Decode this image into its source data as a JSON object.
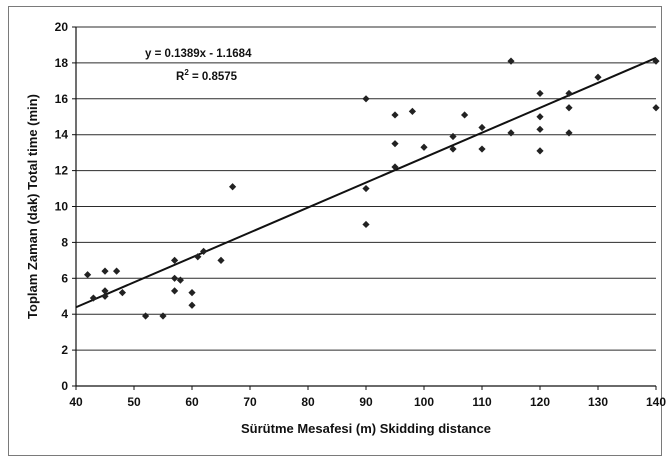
{
  "chart_data": {
    "type": "scatter",
    "xlabel": "Sürütme Mesafesi (m)  Skidding distance",
    "ylabel": "Toplam Zaman (dak)   Total time (min)",
    "xlim": [
      40,
      140
    ],
    "ylim": [
      0,
      20
    ],
    "x_ticks": [
      40,
      50,
      60,
      70,
      80,
      90,
      100,
      110,
      120,
      130,
      140
    ],
    "y_ticks": [
      0,
      2,
      4,
      6,
      8,
      10,
      12,
      14,
      16,
      18,
      20
    ],
    "grid": "horizontal",
    "points": [
      {
        "x": 42,
        "y": 6.2
      },
      {
        "x": 43,
        "y": 4.9
      },
      {
        "x": 45,
        "y": 6.4
      },
      {
        "x": 45,
        "y": 5.3
      },
      {
        "x": 45,
        "y": 5.0
      },
      {
        "x": 47,
        "y": 6.4
      },
      {
        "x": 48,
        "y": 5.2
      },
      {
        "x": 52,
        "y": 3.9
      },
      {
        "x": 55,
        "y": 3.9
      },
      {
        "x": 57,
        "y": 7.0
      },
      {
        "x": 57,
        "y": 6.0
      },
      {
        "x": 57,
        "y": 5.3
      },
      {
        "x": 58,
        "y": 5.9
      },
      {
        "x": 60,
        "y": 5.2
      },
      {
        "x": 60,
        "y": 4.5
      },
      {
        "x": 61,
        "y": 7.2
      },
      {
        "x": 62,
        "y": 7.5
      },
      {
        "x": 65,
        "y": 7.0
      },
      {
        "x": 67,
        "y": 11.1
      },
      {
        "x": 90,
        "y": 16.0
      },
      {
        "x": 90,
        "y": 11.0
      },
      {
        "x": 90,
        "y": 9.0
      },
      {
        "x": 95,
        "y": 15.1
      },
      {
        "x": 95,
        "y": 13.5
      },
      {
        "x": 95,
        "y": 12.2
      },
      {
        "x": 98,
        "y": 15.3
      },
      {
        "x": 100,
        "y": 13.3
      },
      {
        "x": 105,
        "y": 13.2
      },
      {
        "x": 105,
        "y": 13.9
      },
      {
        "x": 107,
        "y": 15.1
      },
      {
        "x": 110,
        "y": 14.4
      },
      {
        "x": 110,
        "y": 13.2
      },
      {
        "x": 115,
        "y": 18.1
      },
      {
        "x": 115,
        "y": 14.1
      },
      {
        "x": 120,
        "y": 16.3
      },
      {
        "x": 120,
        "y": 15.0
      },
      {
        "x": 120,
        "y": 14.3
      },
      {
        "x": 120,
        "y": 13.1
      },
      {
        "x": 125,
        "y": 16.3
      },
      {
        "x": 125,
        "y": 15.5
      },
      {
        "x": 125,
        "y": 14.1
      },
      {
        "x": 130,
        "y": 17.2
      },
      {
        "x": 140,
        "y": 18.1
      },
      {
        "x": 140,
        "y": 15.5
      }
    ],
    "trendline": {
      "slope": 0.1389,
      "intercept": -1.1684,
      "x_range": [
        40,
        140
      ]
    },
    "equation_text": "y = 0.1389x - 1.1684",
    "r2_prefix": "R",
    "r2_sup": "2",
    "r2_suffix": " = 0.8575",
    "colors": {
      "points": "#222222",
      "line": "#111111",
      "grid": "#2b2b2b",
      "border": "#7a7a7a"
    }
  }
}
